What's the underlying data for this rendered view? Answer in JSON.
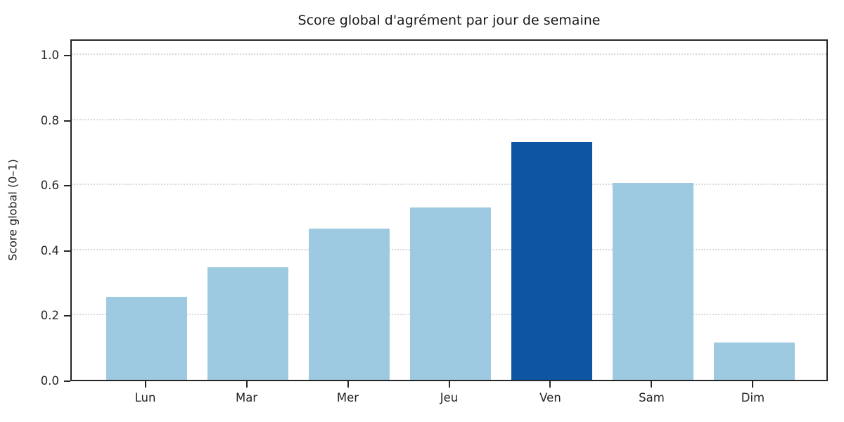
{
  "chart_data": {
    "type": "bar",
    "title": "Score global d'agrément par jour de semaine",
    "xlabel": "",
    "ylabel": "Score global (0–1)",
    "categories": [
      "Lun",
      "Mar",
      "Mer",
      "Jeu",
      "Ven",
      "Sam",
      "Dim"
    ],
    "values": [
      0.255,
      0.345,
      0.465,
      0.53,
      0.73,
      0.605,
      0.115
    ],
    "highlight_index": 4,
    "highlight_category": "Ven",
    "yticks": [
      0.0,
      0.2,
      0.4,
      0.6,
      0.8,
      1.0
    ],
    "ytick_labels": [
      "0.0",
      "0.2",
      "0.4",
      "0.6",
      "0.8",
      "1.0"
    ],
    "ylim": [
      0,
      1.05
    ],
    "grid": "horizontal-dotted",
    "legend": "none",
    "colors": {
      "bar": "#9ecae1",
      "highlight": "#0e55a3",
      "grid": "#d9d9d9",
      "axis": "#262626",
      "background": "#ffffff"
    }
  }
}
